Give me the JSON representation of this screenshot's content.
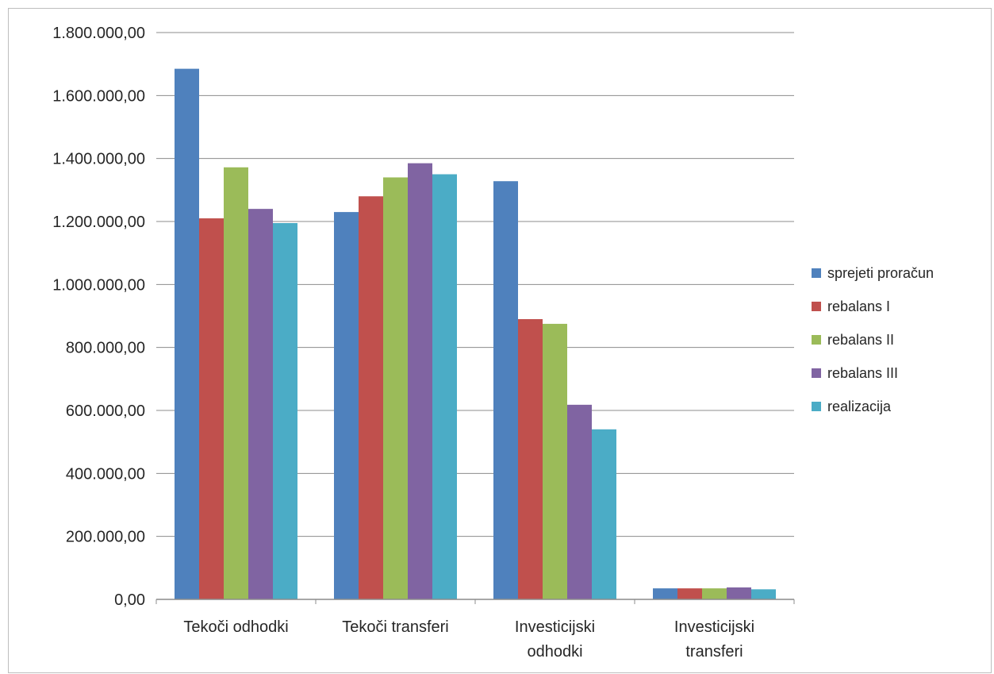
{
  "chart_data": {
    "type": "bar",
    "categories": [
      [
        "Tekoči odhodki"
      ],
      [
        "Tekoči transferi"
      ],
      [
        "Investicijski",
        "odhodki"
      ],
      [
        "Investicijski",
        "transferi"
      ]
    ],
    "series": [
      {
        "name": "sprejeti proračun",
        "color": "#4f81bd",
        "values": [
          1685000,
          1230000,
          1328000,
          35000
        ]
      },
      {
        "name": "rebalans I",
        "color": "#c0504d",
        "values": [
          1210000,
          1280000,
          890000,
          35000
        ]
      },
      {
        "name": "rebalans II",
        "color": "#9bbb59",
        "values": [
          1372000,
          1340000,
          875000,
          35000
        ]
      },
      {
        "name": "rebalans III",
        "color": "#8064a2",
        "values": [
          1240000,
          1385000,
          618000,
          38000
        ]
      },
      {
        "name": "realizacija",
        "color": "#4bacc6",
        "values": [
          1195000,
          1350000,
          540000,
          32000
        ]
      }
    ],
    "ylim": [
      0,
      1800000
    ],
    "yticks": [
      0,
      200000,
      400000,
      600000,
      800000,
      1000000,
      1200000,
      1400000,
      1600000,
      1800000
    ],
    "ytick_labels": [
      "0,00",
      "200.000,00",
      "400.000,00",
      "600.000,00",
      "800.000,00",
      "1.000.000,00",
      "1.200.000,00",
      "1.400.000,00",
      "1.600.000,00",
      "1.800.000,00"
    ],
    "grid": true,
    "legend_position": "right"
  }
}
